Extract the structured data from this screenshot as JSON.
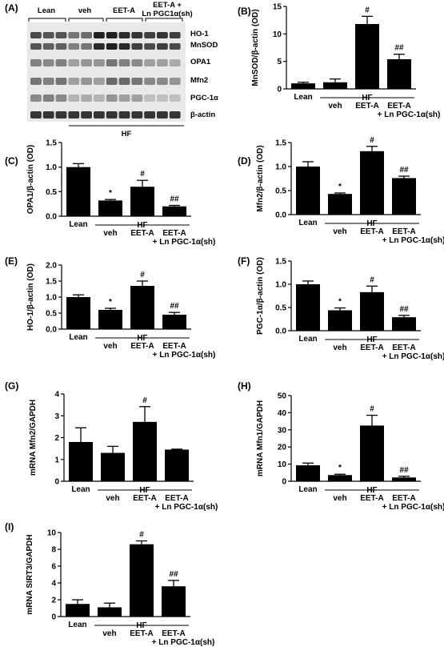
{
  "western_blot": {
    "panel_label": "(A)",
    "groups": [
      "Lean",
      "veh",
      "EET-A",
      "EET-A +",
      "Ln PGC1α(sh)"
    ],
    "proteins": [
      "HO-1",
      "MnSOD",
      "OPA1",
      "Mfn2",
      "PGC-1α",
      "β-actin"
    ],
    "footer": "HF"
  },
  "chart_data": [
    {
      "type": "bar",
      "panel_label": "(B)",
      "ylabel": "MnSOD/β-actin (OD)",
      "ylim": [
        0,
        15
      ],
      "yticks": [
        "0",
        "5",
        "10",
        "15"
      ],
      "categories": [
        "Lean",
        "veh",
        "EET-A",
        "EET-A"
      ],
      "cat_sub": "+ Ln PGC-1α(sh)",
      "group_label": "HF",
      "values": [
        1.0,
        1.2,
        11.8,
        5.4
      ],
      "errors": [
        0.2,
        0.6,
        1.4,
        0.9
      ],
      "sig": [
        "",
        "",
        "#",
        "##"
      ]
    },
    {
      "type": "bar",
      "panel_label": "(C)",
      "ylabel": "OPA1/β-actin (OD)",
      "ylim": [
        0,
        1.5
      ],
      "yticks": [
        "0.0",
        "0.5",
        "1.0",
        "1.5"
      ],
      "categories": [
        "Lean",
        "veh",
        "EET-A",
        "EET-A"
      ],
      "cat_sub": "+ Ln PGC-1α(sh)",
      "group_label": "HF",
      "values": [
        1.0,
        0.32,
        0.6,
        0.2
      ],
      "errors": [
        0.07,
        0.02,
        0.13,
        0.02
      ],
      "sig": [
        "",
        "*",
        "#",
        "##"
      ]
    },
    {
      "type": "bar",
      "panel_label": "(D)",
      "ylabel": "Mfn2/β-actin (OD)",
      "ylim": [
        0,
        1.5
      ],
      "yticks": [
        "0.0",
        "0.5",
        "1.0",
        "1.5"
      ],
      "categories": [
        "Lean",
        "veh",
        "EET-A",
        "EET-A"
      ],
      "cat_sub": "+ Ln PGC-1α(sh)",
      "group_label": "HF",
      "values": [
        1.0,
        0.43,
        1.32,
        0.76
      ],
      "errors": [
        0.1,
        0.02,
        0.1,
        0.04
      ],
      "sig": [
        "",
        "*",
        "#",
        "##"
      ]
    },
    {
      "type": "bar",
      "panel_label": "(E)",
      "ylabel": "HO-1/β-actin (OD)",
      "ylim": [
        0,
        2.0
      ],
      "yticks": [
        "0.0",
        "0.5",
        "1.0",
        "1.5",
        "2.0"
      ],
      "categories": [
        "Lean",
        "veh",
        "EET-A",
        "EET-A"
      ],
      "cat_sub": "+ Ln PGC-1α(sh)",
      "group_label": "HF",
      "values": [
        1.0,
        0.6,
        1.35,
        0.45
      ],
      "errors": [
        0.07,
        0.05,
        0.15,
        0.07
      ],
      "sig": [
        "",
        "*",
        "#",
        "##"
      ]
    },
    {
      "type": "bar",
      "panel_label": "(F)",
      "ylabel": "PGC-1α/β-actin (OD)",
      "ylim": [
        0,
        1.5
      ],
      "yticks": [
        "0.0",
        "0.5",
        "1.0",
        "1.5"
      ],
      "categories": [
        "Lean",
        "veh",
        "EET-A",
        "EET-A"
      ],
      "cat_sub": "+ Ln PGC-1α(sh)",
      "group_label": "HF",
      "values": [
        1.0,
        0.44,
        0.83,
        0.29
      ],
      "errors": [
        0.07,
        0.05,
        0.13,
        0.04
      ],
      "sig": [
        "",
        "*",
        "#",
        "##"
      ]
    },
    {
      "type": "bar",
      "panel_label": "(G)",
      "ylabel": "mRNA Mfn2/GAPDH",
      "ylim": [
        0,
        4
      ],
      "yticks": [
        "0",
        "1",
        "2",
        "3",
        "4"
      ],
      "categories": [
        "Lean",
        "veh",
        "EET-A",
        "EET-A"
      ],
      "cat_sub": "+ Ln PGC-1α(sh)",
      "group_label": "HF",
      "values": [
        1.8,
        1.3,
        2.72,
        1.45
      ],
      "errors": [
        0.65,
        0.3,
        0.7,
        0.02
      ],
      "sig": [
        "",
        "",
        "#",
        ""
      ]
    },
    {
      "type": "bar",
      "panel_label": "(H)",
      "ylabel": "mRNA Mfn1/GAPDH",
      "ylim": [
        0,
        50
      ],
      "yticks": [
        "0",
        "10",
        "20",
        "30",
        "40",
        "50"
      ],
      "categories": [
        "Lean",
        "veh",
        "EET-A",
        "EET-A"
      ],
      "cat_sub": "+ Ln PGC-1α(sh)",
      "group_label": "HF",
      "values": [
        9.3,
        3.6,
        32.5,
        2.2
      ],
      "errors": [
        1.3,
        0.5,
        6.0,
        0.7
      ],
      "sig": [
        "",
        "*",
        "#",
        "##"
      ]
    },
    {
      "type": "bar",
      "panel_label": "(I)",
      "ylabel": "mRNA SIRT3/GAPDH",
      "ylim": [
        0,
        10
      ],
      "yticks": [
        "0",
        "2",
        "4",
        "6",
        "8",
        "10"
      ],
      "categories": [
        "Lean",
        "veh",
        "EET-A",
        "EET-A"
      ],
      "cat_sub": "+ Ln PGC-1α(sh)",
      "group_label": "HF",
      "values": [
        1.5,
        1.1,
        8.6,
        3.6
      ],
      "errors": [
        0.5,
        0.5,
        0.4,
        0.7
      ],
      "sig": [
        "",
        "",
        "#",
        "##"
      ]
    }
  ]
}
